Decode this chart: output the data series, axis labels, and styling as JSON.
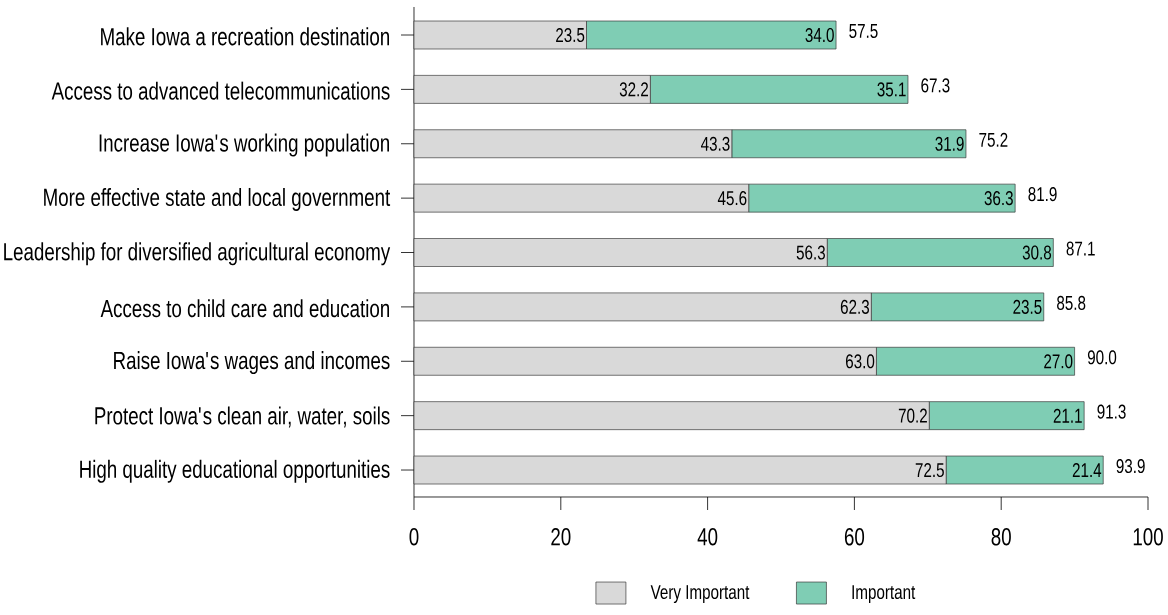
{
  "chart_data": {
    "type": "bar",
    "orientation": "horizontal",
    "stacked": true,
    "categories": [
      "Make Iowa a recreation destination",
      "Access to advanced telecommunications",
      "Increase Iowa's working population",
      "More effective state and local government",
      "Leadership for diversified agricultural economy",
      "Access to child care and education",
      "Raise Iowa's wages and incomes",
      "Protect Iowa's clean air, water, soils",
      "High quality educational opportunities"
    ],
    "series": [
      {
        "name": "Very Important",
        "color": "#d9d9d9",
        "values": [
          23.5,
          32.2,
          43.3,
          45.6,
          56.3,
          62.3,
          63.0,
          70.2,
          72.5
        ],
        "value_labels": [
          "23.5",
          "32.2",
          "43.3",
          "45.6",
          "56.3",
          "62.3",
          "63.0",
          "70.2",
          "72.5"
        ]
      },
      {
        "name": "Important",
        "color": "#7fcdb4",
        "values": [
          34.0,
          35.1,
          31.9,
          36.3,
          30.8,
          23.5,
          27.0,
          21.1,
          21.4
        ],
        "value_labels": [
          "34.0",
          "35.1",
          "31.9",
          "36.3",
          "30.8",
          "23.5",
          "27.0",
          "21.1",
          "21.4"
        ]
      }
    ],
    "totals": [
      "57.5",
      "67.3",
      "75.2",
      "81.9",
      "87.1",
      "85.8",
      "90.0",
      "91.3",
      "93.9"
    ],
    "xlim": [
      0,
      100
    ],
    "xticks": [
      0,
      20,
      40,
      60,
      80,
      100
    ],
    "legend": "bottom"
  }
}
